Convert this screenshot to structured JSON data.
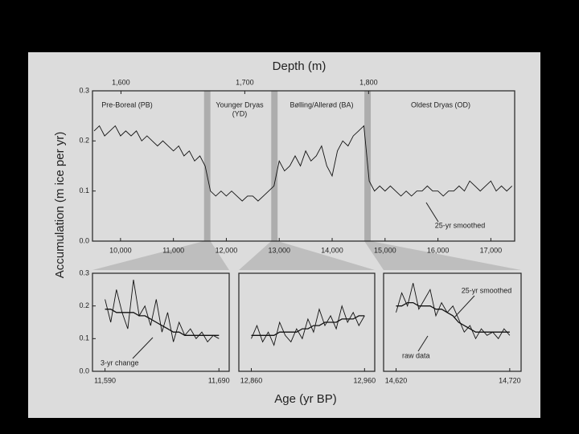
{
  "chart_data": [
    {
      "type": "line",
      "ylabel": "Accumulation (m ice per yr)",
      "x2label": "Depth (m)",
      "annotations": [
        "Pre-Boreal (PB)",
        "Younger Dryas",
        "(YD)",
        "Bølling/Allerød (BA)",
        "Oldest Dryas (OD)"
      ],
      "xlim": [
        9470,
        17450
      ],
      "xticks": [
        {
          "value": 10000,
          "label": "10,000"
        },
        {
          "value": 11000,
          "label": "11,000"
        },
        {
          "value": 12000,
          "label": "12,000"
        },
        {
          "value": 13000,
          "label": "13,000"
        },
        {
          "value": 14000,
          "label": "14,000"
        },
        {
          "value": 15000,
          "label": "15,000"
        },
        {
          "value": 16000,
          "label": "16,000"
        },
        {
          "value": 17000,
          "label": "17,000"
        }
      ],
      "x2lim": [
        1577,
        1918
      ],
      "x2ticks": [
        {
          "value": 1600,
          "label": "1,600"
        },
        {
          "value": 1700,
          "label": "1,700"
        },
        {
          "value": 1800,
          "label": "1,800"
        }
      ],
      "ylim": [
        0,
        0.3
      ],
      "yticks": [
        {
          "value": 0,
          "label": "0.0"
        },
        0.1,
        0.2,
        0.3
      ],
      "x": [
        9500,
        9600,
        9700,
        9800,
        9900,
        10000,
        10100,
        10200,
        10300,
        10400,
        10500,
        10600,
        10700,
        10800,
        10900,
        11000,
        11100,
        11200,
        11300,
        11400,
        11500,
        11600,
        11700,
        11800,
        11900,
        12000,
        12100,
        12200,
        12300,
        12400,
        12500,
        12600,
        12700,
        12800,
        12900,
        13000,
        13100,
        13200,
        13300,
        13400,
        13500,
        13600,
        13700,
        13800,
        13900,
        14000,
        14100,
        14200,
        14300,
        14400,
        14500,
        14600,
        14700,
        14800,
        14900,
        15000,
        15100,
        15200,
        15300,
        15400,
        15500,
        15600,
        15700,
        15800,
        15900,
        16000,
        16100,
        16200,
        16300,
        16400,
        16500,
        16600,
        16700,
        16800,
        16900,
        17000,
        17100,
        17200,
        17300,
        17400
      ],
      "series": [
        {
          "name": "25-yr smoothed",
          "color": "#111111",
          "values": [
            0.22,
            0.23,
            0.21,
            0.22,
            0.23,
            0.21,
            0.22,
            0.21,
            0.22,
            0.2,
            0.21,
            0.2,
            0.19,
            0.2,
            0.19,
            0.18,
            0.19,
            0.17,
            0.18,
            0.16,
            0.17,
            0.15,
            0.1,
            0.09,
            0.1,
            0.09,
            0.1,
            0.09,
            0.08,
            0.09,
            0.09,
            0.08,
            0.09,
            0.1,
            0.11,
            0.16,
            0.14,
            0.15,
            0.17,
            0.15,
            0.18,
            0.16,
            0.17,
            0.19,
            0.15,
            0.13,
            0.18,
            0.2,
            0.19,
            0.21,
            0.22,
            0.23,
            0.12,
            0.1,
            0.11,
            0.1,
            0.11,
            0.1,
            0.09,
            0.1,
            0.09,
            0.1,
            0.1,
            0.11,
            0.1,
            0.1,
            0.09,
            0.1,
            0.1,
            0.11,
            0.1,
            0.12,
            0.11,
            0.1,
            0.11,
            0.12,
            0.1,
            0.11,
            0.1,
            0.11
          ]
        }
      ]
    },
    {
      "type": "line",
      "annotations": [
        "3-yr change"
      ],
      "xlim": [
        11579,
        11699
      ],
      "xticks": [
        {
          "value": 11590,
          "label": "11,590"
        },
        {
          "value": 11690,
          "label": "11,690"
        }
      ],
      "ylim": [
        0,
        0.3
      ],
      "yticks": [
        {
          "value": 0,
          "label": "0.0"
        },
        0.1,
        0.2,
        0.3
      ],
      "x": [
        11590,
        11595,
        11600,
        11605,
        11610,
        11615,
        11620,
        11625,
        11630,
        11635,
        11640,
        11645,
        11650,
        11655,
        11660,
        11665,
        11670,
        11675,
        11680,
        11685,
        11690
      ],
      "series": [
        {
          "color": "#111111",
          "values": [
            0.22,
            0.15,
            0.25,
            0.18,
            0.13,
            0.28,
            0.17,
            0.2,
            0.14,
            0.22,
            0.12,
            0.18,
            0.09,
            0.15,
            0.11,
            0.13,
            0.1,
            0.12,
            0.09,
            0.11,
            0.1
          ]
        },
        {
          "color": "#111111",
          "values": [
            0.19,
            0.19,
            0.18,
            0.18,
            0.18,
            0.18,
            0.17,
            0.17,
            0.16,
            0.15,
            0.14,
            0.13,
            0.12,
            0.12,
            0.11,
            0.11,
            0.11,
            0.11,
            0.11,
            0.11,
            0.11
          ]
        }
      ]
    },
    {
      "type": "line",
      "xlabel": "Age (yr BP)",
      "xlim": [
        12849,
        12969
      ],
      "xticks": [
        {
          "value": 12860,
          "label": "12,860"
        },
        {
          "value": 12960,
          "label": "12,960"
        }
      ],
      "ylim": [
        0,
        0.3
      ],
      "x": [
        12860,
        12865,
        12870,
        12875,
        12880,
        12885,
        12890,
        12895,
        12900,
        12905,
        12910,
        12915,
        12920,
        12925,
        12930,
        12935,
        12940,
        12945,
        12950,
        12955,
        12960
      ],
      "series": [
        {
          "color": "#111111",
          "values": [
            0.1,
            0.14,
            0.09,
            0.12,
            0.08,
            0.15,
            0.11,
            0.09,
            0.13,
            0.1,
            0.16,
            0.12,
            0.19,
            0.14,
            0.17,
            0.13,
            0.2,
            0.15,
            0.18,
            0.14,
            0.17
          ]
        },
        {
          "color": "#111111",
          "values": [
            0.11,
            0.11,
            0.11,
            0.11,
            0.11,
            0.12,
            0.12,
            0.12,
            0.12,
            0.13,
            0.13,
            0.14,
            0.14,
            0.15,
            0.15,
            0.15,
            0.16,
            0.16,
            0.16,
            0.17,
            0.17
          ]
        }
      ]
    },
    {
      "type": "line",
      "xlim": [
        14609,
        14730
      ],
      "xticks": [
        {
          "value": 14620,
          "label": "14,620"
        },
        {
          "value": 14720,
          "label": "14,720"
        }
      ],
      "ylim": [
        0,
        0.3
      ],
      "x": [
        14620,
        14625,
        14630,
        14635,
        14640,
        14645,
        14650,
        14655,
        14660,
        14665,
        14670,
        14675,
        14680,
        14685,
        14690,
        14695,
        14700,
        14705,
        14710,
        14715,
        14720
      ],
      "series": [
        {
          "name": "raw data",
          "color": "#111111",
          "values": [
            0.18,
            0.24,
            0.2,
            0.27,
            0.19,
            0.22,
            0.25,
            0.17,
            0.21,
            0.18,
            0.2,
            0.16,
            0.12,
            0.14,
            0.1,
            0.13,
            0.11,
            0.12,
            0.1,
            0.13,
            0.11
          ]
        },
        {
          "name": "25-yr smoothed",
          "color": "#111111",
          "values": [
            0.2,
            0.2,
            0.21,
            0.21,
            0.2,
            0.2,
            0.2,
            0.19,
            0.19,
            0.18,
            0.17,
            0.15,
            0.14,
            0.13,
            0.12,
            0.12,
            0.12,
            0.12,
            0.12,
            0.12,
            0.12
          ]
        }
      ]
    }
  ]
}
